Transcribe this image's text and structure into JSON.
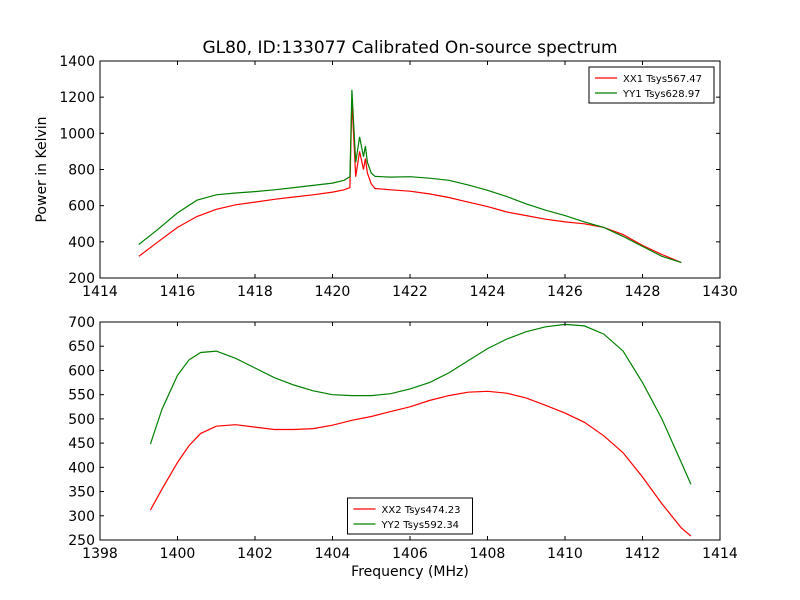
{
  "title": "GL80, ID:133077 Calibrated On-source spectrum",
  "chart_data": [
    {
      "type": "line",
      "ylabel": "Power in Kelvin",
      "xlabel": "",
      "xlim": [
        1414,
        1430
      ],
      "ylim": [
        200,
        1400
      ],
      "xticks": [
        1414,
        1416,
        1418,
        1420,
        1422,
        1424,
        1426,
        1428,
        1430
      ],
      "yticks": [
        200,
        400,
        600,
        800,
        1000,
        1200,
        1400
      ],
      "legend_position": "top-right",
      "series": [
        {
          "name": "XX1 Tsys567.47",
          "color": "#ff0000",
          "x": [
            1415,
            1415.5,
            1416,
            1416.5,
            1417,
            1417.5,
            1418,
            1418.5,
            1419,
            1419.5,
            1420,
            1420.3,
            1420.45,
            1420.5,
            1420.6,
            1420.7,
            1420.8,
            1420.85,
            1420.9,
            1421,
            1421.1,
            1421.5,
            1422,
            1422.5,
            1423,
            1423.5,
            1424,
            1424.5,
            1425,
            1425.5,
            1426,
            1426.5,
            1427,
            1427.5,
            1428,
            1428.5,
            1429
          ],
          "y": [
            320,
            400,
            480,
            540,
            580,
            605,
            620,
            635,
            648,
            660,
            675,
            688,
            700,
            1180,
            760,
            900,
            800,
            860,
            780,
            720,
            695,
            688,
            680,
            665,
            645,
            620,
            595,
            565,
            545,
            525,
            510,
            500,
            480,
            440,
            380,
            330,
            285
          ]
        },
        {
          "name": "YY1 Tsys628.97",
          "color": "#008000",
          "x": [
            1415,
            1415.5,
            1416,
            1416.5,
            1417,
            1417.5,
            1418,
            1418.5,
            1419,
            1419.5,
            1420,
            1420.3,
            1420.45,
            1420.5,
            1420.6,
            1420.7,
            1420.8,
            1420.85,
            1420.9,
            1421,
            1421.1,
            1421.5,
            1422,
            1422.5,
            1423,
            1423.5,
            1424,
            1424.5,
            1425,
            1425.5,
            1426,
            1426.5,
            1427,
            1427.5,
            1428,
            1428.5,
            1429
          ],
          "y": [
            385,
            470,
            560,
            630,
            660,
            670,
            678,
            688,
            700,
            712,
            725,
            740,
            760,
            1240,
            840,
            980,
            870,
            930,
            840,
            780,
            762,
            758,
            760,
            752,
            740,
            715,
            685,
            650,
            610,
            575,
            545,
            510,
            480,
            430,
            375,
            320,
            285
          ]
        }
      ]
    },
    {
      "type": "line",
      "ylabel": "",
      "xlabel": "Frequency (MHz)",
      "xlim": [
        1398,
        1414
      ],
      "ylim": [
        250,
        700
      ],
      "xticks": [
        1398,
        1400,
        1402,
        1404,
        1406,
        1408,
        1410,
        1412,
        1414
      ],
      "yticks": [
        250,
        300,
        350,
        400,
        450,
        500,
        550,
        600,
        650,
        700
      ],
      "legend_position": "bottom-center",
      "series": [
        {
          "name": "XX2 Tsys474.23",
          "color": "#ff0000",
          "x": [
            1399.3,
            1399.6,
            1400,
            1400.3,
            1400.6,
            1401,
            1401.5,
            1402,
            1402.5,
            1403,
            1403.5,
            1404,
            1404.5,
            1405,
            1405.5,
            1406,
            1406.5,
            1407,
            1407.5,
            1408,
            1408.5,
            1409,
            1409.5,
            1410,
            1410.5,
            1411,
            1411.5,
            1412,
            1412.5,
            1413,
            1413.25
          ],
          "y": [
            312,
            355,
            410,
            445,
            470,
            485,
            488,
            483,
            478,
            478,
            480,
            487,
            497,
            505,
            515,
            525,
            538,
            548,
            555,
            557,
            553,
            543,
            528,
            512,
            493,
            465,
            430,
            380,
            325,
            275,
            258
          ]
        },
        {
          "name": "YY2 Tsys592.34",
          "color": "#008000",
          "x": [
            1399.3,
            1399.6,
            1400,
            1400.3,
            1400.6,
            1401,
            1401.5,
            1402,
            1402.5,
            1403,
            1403.5,
            1404,
            1404.5,
            1405,
            1405.5,
            1406,
            1406.5,
            1407,
            1407.5,
            1408,
            1408.5,
            1409,
            1409.5,
            1410,
            1410.5,
            1411,
            1411.5,
            1412,
            1412.5,
            1413,
            1413.25
          ],
          "y": [
            448,
            520,
            590,
            622,
            637,
            640,
            625,
            605,
            585,
            570,
            558,
            550,
            548,
            548,
            552,
            562,
            575,
            595,
            620,
            645,
            665,
            680,
            690,
            695,
            692,
            675,
            640,
            575,
            500,
            410,
            365
          ]
        }
      ]
    }
  ]
}
